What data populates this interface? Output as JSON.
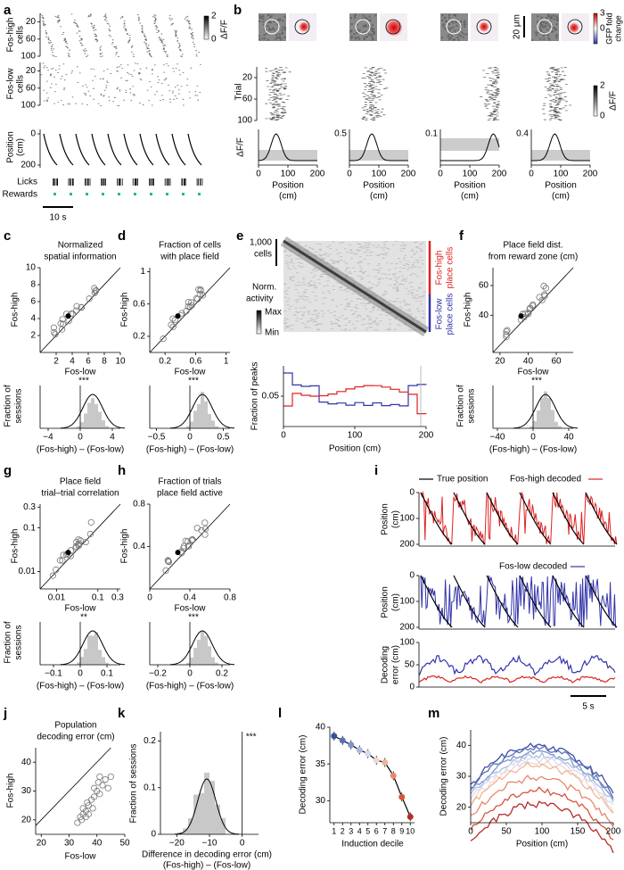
{
  "a": {
    "letter": "a",
    "high_label": [
      "Fos-high",
      "cells"
    ],
    "low_label": [
      "Fos-low",
      "cells"
    ],
    "cell_ticks": [
      20,
      60,
      100
    ],
    "colorbar_ticks": [
      2,
      0
    ],
    "colorbar_label": "ΔF/F",
    "position_label": [
      "Position",
      "(cm)"
    ],
    "position_ticks": [
      0,
      200
    ],
    "licks": "Licks",
    "rewards": "Rewards",
    "scale": "10 s"
  },
  "b": {
    "letter": "b",
    "scale": "20 μm",
    "colorbar_lim": [
      -3,
      3
    ],
    "colorbar_ticks": [
      3,
      0
    ],
    "colorbar_label": [
      "GFP fold",
      "change"
    ],
    "trial_label": "Trial",
    "trial_ticks": [
      20,
      60,
      100
    ],
    "dff_colorbar_ticks": [
      2,
      0
    ],
    "dff_label": "ΔF/F",
    "trace_ticks": [
      0.5,
      0.1,
      0.4
    ],
    "x_ticks": [
      0,
      100,
      200
    ],
    "xlabel": [
      "Position",
      "(cm)"
    ]
  },
  "c": {
    "letter": "c",
    "title": [
      "Normalized",
      "spatial information"
    ],
    "ylabel": "Fos-high",
    "xlabel": "Fos-low",
    "xlim": [
      0,
      10
    ],
    "ylim": [
      0,
      10
    ],
    "xticks": [
      2,
      4,
      6,
      8,
      10
    ],
    "yticks": [
      2,
      4,
      6,
      8,
      10
    ],
    "stars": "***",
    "hist_xlim": [
      -5,
      5
    ],
    "hist_xticks": [
      {
        "value": -4,
        "label": "−4"
      },
      0,
      4
    ],
    "hist_ylabel": [
      "Fraction of",
      "sessions"
    ],
    "hist_xlabel": "(Fos-high) – (Fos-low)"
  },
  "d": {
    "letter": "d",
    "title": [
      "Fraction of cells",
      "with place field"
    ],
    "ylabel": "Fos-high",
    "xlabel": "Fos-low",
    "xlim": [
      0,
      1.05
    ],
    "ylim": [
      0,
      1.05
    ],
    "xticks": [
      0.2,
      0.6,
      1
    ],
    "yticks": [
      0.2,
      0.6,
      1
    ],
    "stars": "***",
    "hist_xlim": [
      -0.6,
      0.6
    ],
    "hist_xticks": [
      {
        "value": -0.5,
        "label": "−0.5"
      },
      0,
      0.5
    ],
    "hist_xlabel": "(Fos-high) – (Fos-low)"
  },
  "e": {
    "letter": "e",
    "scale": [
      "1,000",
      "cells"
    ],
    "ylabel": [
      "Norm.",
      "activity"
    ],
    "colorbar": [
      "Max",
      "Min"
    ],
    "high": [
      "Fos-high",
      "place cells"
    ],
    "low": [
      "Fos-low",
      "place cells"
    ],
    "hist_ylabel": "Fraction of peaks",
    "hist_ylim": [
      0.02,
      0.08
    ],
    "hist_yticks": [
      0.05
    ],
    "xlim": [
      0,
      200
    ],
    "xticks": [
      0,
      100,
      200
    ],
    "xlabel": "Position (cm)"
  },
  "f": {
    "letter": "f",
    "title": [
      "Place field dist.",
      "from reward zone (cm)"
    ],
    "ylabel": "Fos-high",
    "xlabel": "Fos-low",
    "xlim": [
      15,
      72
    ],
    "ylim": [
      15,
      72
    ],
    "xticks": [
      20,
      40,
      60
    ],
    "yticks": [
      40,
      60
    ],
    "stars": "***",
    "hist_xlim": [
      -45,
      45
    ],
    "hist_xticks": [
      {
        "value": -40,
        "label": "−40"
      },
      0,
      40
    ],
    "hist_ylabel": [
      "Fraction of",
      "sessions"
    ],
    "hist_xlabel": "(Fos-high) – (Fos-low)"
  },
  "g": {
    "letter": "g",
    "title": [
      "Place field",
      "trial–trial correlation"
    ],
    "ylabel": "Fos-high",
    "xlabel": "Fos-low",
    "log": true,
    "xlim": [
      0.004,
      0.35
    ],
    "ylim": [
      0.004,
      0.35
    ],
    "xticks": [
      0.01,
      0.1,
      0.3
    ],
    "yticks": [
      0.01,
      0.1,
      0.3
    ],
    "stars": "**",
    "hist_xlim": [
      -0.15,
      0.15
    ],
    "hist_xticks": [
      {
        "value": -0.1,
        "label": "−0.1"
      },
      0,
      0.1
    ],
    "hist_ylabel": [
      "Fraction of",
      "sessions"
    ],
    "hist_xlabel": "(Fos-high) – (Fos-low)"
  },
  "h": {
    "letter": "h",
    "title": [
      "Fraction of trials",
      "place field active"
    ],
    "ylabel": "Fos-high",
    "xlabel": "Fos-low",
    "xlim": [
      0,
      0.8
    ],
    "ylim": [
      0,
      0.8
    ],
    "xticks": [
      0,
      0.4,
      0.8
    ],
    "yticks": [
      0.4,
      0.8
    ],
    "stars": "***",
    "hist_xlim": [
      -0.25,
      0.25
    ],
    "hist_xticks": [
      {
        "value": -0.2,
        "label": "−0.2"
      },
      0,
      0.2
    ],
    "hist_xlabel": "(Fos-high) – (Fos-low)"
  },
  "i": {
    "letter": "i",
    "legend": [
      "True position",
      "Fos-high decoded",
      "Fos-low decoded"
    ],
    "ylabel": [
      "Position",
      "(cm)"
    ],
    "position_ticks": [
      0,
      100,
      200
    ],
    "error_label": [
      "Decoding",
      "error (cm)"
    ],
    "error_ticks": [
      0,
      50,
      100
    ],
    "scale": "5 s"
  },
  "j": {
    "letter": "j",
    "title": [
      "Population",
      "decoding error (cm)"
    ],
    "ylabel": "Fos-high",
    "xlabel": "Fos-low",
    "xlim": [
      18,
      50
    ],
    "ylim": [
      15,
      45
    ],
    "xticks": [
      20,
      30,
      40,
      50
    ],
    "yticks": [
      20,
      30,
      40
    ],
    "x": [
      33,
      34,
      34.5,
      35,
      35,
      36,
      36.5,
      37,
      37,
      38,
      38.5,
      39,
      39,
      40,
      40.5,
      41,
      41,
      42,
      43,
      44,
      45,
      36
    ],
    "y": [
      19,
      21,
      20,
      22,
      24,
      23,
      26,
      22,
      25,
      27,
      24,
      28,
      31,
      30,
      33,
      29,
      35,
      32,
      34,
      31,
      35,
      21
    ]
  },
  "k": {
    "letter": "k",
    "ylabel": "Fraction of sessions",
    "xlim": [
      -25,
      5
    ],
    "ylim": [
      0,
      0.22
    ],
    "xticks": [
      {
        "value": -20,
        "label": "−20"
      },
      {
        "value": -10,
        "label": "−10"
      },
      0
    ],
    "yticks": [
      0,
      0.1,
      0.2
    ],
    "stars": "***",
    "xlabel": [
      "Difference in decoding error (cm)",
      "(Fos-high) – (Fos-low)"
    ]
  },
  "l": {
    "letter": "l",
    "ylabel": "Decoding error (cm)",
    "xlim": [
      0.5,
      10.5
    ],
    "ylim": [
      27,
      40
    ],
    "xticks": [
      1,
      2,
      3,
      4,
      5,
      6,
      7,
      8,
      9,
      10
    ],
    "yticks": [
      30,
      35,
      40
    ],
    "xlabel": "Induction decile",
    "values": [
      38.8,
      38.2,
      37.6,
      36.9,
      36.4,
      35.5,
      35.2,
      33.4,
      30.5,
      27.8
    ],
    "colors": [
      "#3b4fa0",
      "#5a6fb8",
      "#7f93cc",
      "#a9b9e0",
      "#d3dbef",
      "#f2d8cc",
      "#f0b39a",
      "#e8876b",
      "#d9533e",
      "#b82a2a"
    ]
  },
  "m": {
    "letter": "m",
    "ylabel": "Decoding error (cm)",
    "xlim": [
      0,
      200
    ],
    "ylim": [
      15,
      45
    ],
    "xticks": [
      0,
      50,
      100,
      150,
      200
    ],
    "yticks": [
      20,
      30,
      40
    ],
    "xlabel": "Position (cm)"
  }
}
